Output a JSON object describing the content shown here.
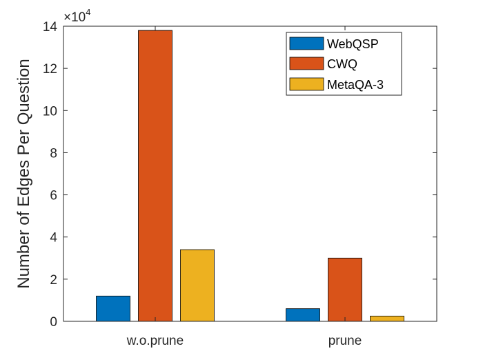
{
  "chart_data": {
    "type": "bar",
    "title": "",
    "xlabel": "",
    "ylabel": "Number of Edges Per Question",
    "exponent_label": "×10",
    "exponent_power": "4",
    "categories": [
      "w.o.prune",
      "prune"
    ],
    "yticks": [
      "0",
      "2",
      "4",
      "6",
      "8",
      "10",
      "12",
      "14"
    ],
    "ylim": [
      0,
      140000
    ],
    "grid": false,
    "legend_position": "top-right",
    "series": [
      {
        "name": "WebQSP",
        "color": "#0072BD",
        "values": [
          12000,
          6000
        ]
      },
      {
        "name": "CWQ",
        "color": "#D95319",
        "values": [
          138000,
          30000
        ]
      },
      {
        "name": "MetaQA-3",
        "color": "#EDB120",
        "values": [
          34000,
          2500
        ]
      }
    ]
  }
}
